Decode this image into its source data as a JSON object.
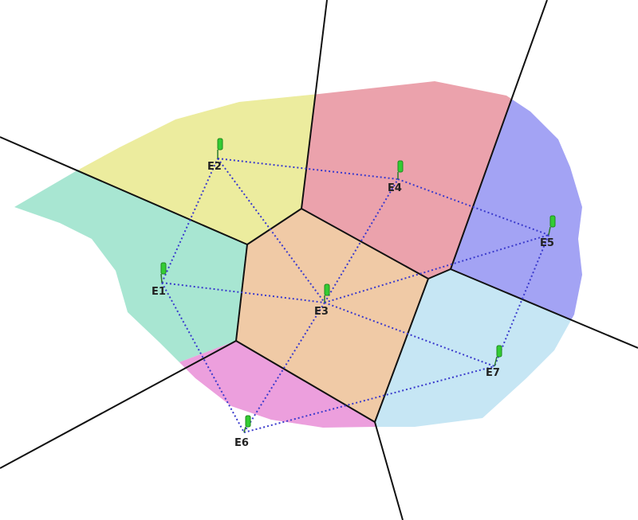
{
  "diagram": {
    "type": "voronoi-delaunay",
    "sites": [
      {
        "id": "E1",
        "label": "E1",
        "region_color": "#a8e6d2"
      },
      {
        "id": "E2",
        "label": "E2",
        "region_color": "#ecec9e"
      },
      {
        "id": "E3",
        "label": "E3",
        "region_color": "#f0caa6"
      },
      {
        "id": "E4",
        "label": "E4",
        "region_color": "#eba2ac"
      },
      {
        "id": "E5",
        "label": "E5",
        "region_color": "#a3a3f4"
      },
      {
        "id": "E6",
        "label": "E6",
        "region_color": "#ec9fdd"
      },
      {
        "id": "E7",
        "label": "E7",
        "region_color": "#c6e6f4"
      }
    ],
    "triangulation_edges": [
      [
        "E1",
        "E2"
      ],
      [
        "E1",
        "E3"
      ],
      [
        "E1",
        "E6"
      ],
      [
        "E2",
        "E3"
      ],
      [
        "E2",
        "E4"
      ],
      [
        "E3",
        "E4"
      ],
      [
        "E3",
        "E5"
      ],
      [
        "E3",
        "E6"
      ],
      [
        "E3",
        "E7"
      ],
      [
        "E4",
        "E5"
      ],
      [
        "E5",
        "E7"
      ],
      [
        "E6",
        "E7"
      ]
    ],
    "colors": {
      "boundary": "#111111",
      "triangulation": "#3a3acc",
      "marker": "#33cc33"
    }
  }
}
